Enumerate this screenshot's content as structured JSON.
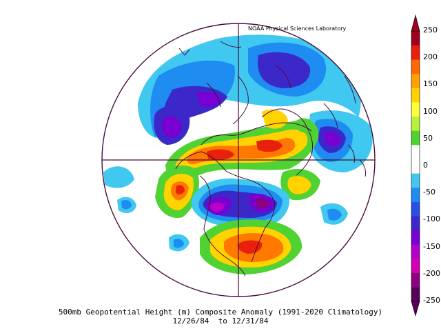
{
  "credit": "NOAA Physical Sciences Laboratory",
  "caption": {
    "title": "500mb Geopotential Height (m) Composite Anomaly (1991-2020 Climatology)",
    "dates": "12/26/84  to 12/31/84"
  },
  "colorbar": {
    "labels": [
      "250",
      "200",
      "150",
      "100",
      "50",
      "0",
      "-50",
      "-100",
      "-150",
      "-200",
      "-250"
    ],
    "colors": [
      "#a00020",
      "#e8200c",
      "#ff6a00",
      "#ffa000",
      "#ffd200",
      "#ffff3c",
      "#b8f03c",
      "#50d232",
      "#ffffff",
      "#ffffff",
      "#40c8f0",
      "#1e8cf0",
      "#2850e6",
      "#3c28c8",
      "#7800d2",
      "#b400c8",
      "#d200b4",
      "#8c0082",
      "#5a005a"
    ]
  },
  "map": {
    "projection": "polar-stereographic",
    "anomaly_colors": {
      "pos_strong": "#e8200c",
      "pos_high": "#ff7800",
      "pos_mid": "#ffd200",
      "pos_low": "#50d232",
      "neg_low": "#40c8f0",
      "neg_mid": "#1e8cf0",
      "neg_high": "#3c28c8",
      "neg_strong": "#7800d2",
      "neg_extreme": "#8c0082"
    }
  }
}
